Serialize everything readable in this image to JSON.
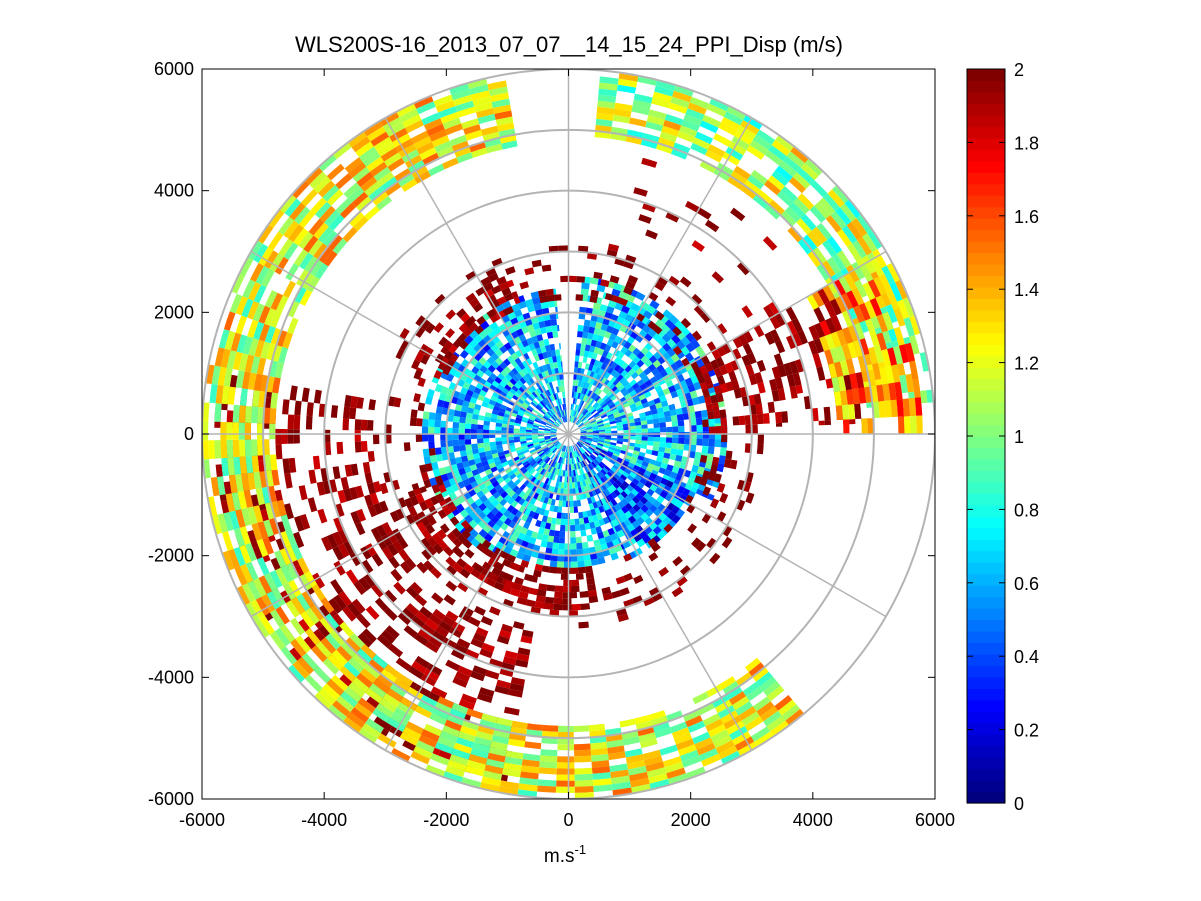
{
  "chart_data": {
    "type": "heatmap",
    "subtype": "polar-ppi",
    "title": "WLS200S-16_2013_07_07__14_15_24_PPI_Disp (m/s)",
    "xlabel_base": "m.s",
    "xlabel_sup": "-1",
    "ylabel": "",
    "xlim": [
      -6000,
      6000
    ],
    "ylim": [
      -6000,
      6000
    ],
    "xticks": [
      "-6000",
      "-4000",
      "-2000",
      "0",
      "2000",
      "4000",
      "6000"
    ],
    "yticks": [
      "6000",
      "4000",
      "2000",
      "0",
      "-2000",
      "-4000",
      "-6000"
    ],
    "x_tick_values": [
      -6000,
      -4000,
      -2000,
      0,
      2000,
      4000,
      6000
    ],
    "y_tick_values": [
      6000,
      4000,
      2000,
      0,
      -2000,
      -4000,
      -6000
    ],
    "max_range": 6000,
    "range_rings": [
      1000,
      2000,
      3000,
      4000,
      5000,
      6000
    ],
    "radial_lines_deg": [
      0,
      30,
      60,
      90,
      120,
      150,
      180,
      210,
      240,
      270,
      300,
      330
    ],
    "grid": true,
    "colorbar": {
      "min": 0,
      "max": 2,
      "ticks": [
        "0",
        "0.2",
        "0.4",
        "0.6",
        "0.8",
        "1",
        "1.2",
        "1.4",
        "1.6",
        "1.8",
        "2"
      ],
      "tick_values": [
        0,
        0.2,
        0.4,
        0.6,
        0.8,
        1,
        1.2,
        1.4,
        1.6,
        1.8,
        2
      ],
      "colormap": "jet",
      "levels": 64
    },
    "regions": [
      {
        "r": [
          200,
          2600
        ],
        "az": [
          5,
          115
        ],
        "level": 0.65,
        "fill": 0.85
      },
      {
        "r": [
          200,
          2300
        ],
        "az": [
          115,
          155
        ],
        "level": 0.45,
        "fill": 0.9
      },
      {
        "r": [
          200,
          2200
        ],
        "az": [
          155,
          210
        ],
        "level": 0.6,
        "fill": 0.85
      },
      {
        "r": [
          200,
          2400
        ],
        "az": [
          210,
          355
        ],
        "level": 0.62,
        "fill": 0.85
      },
      {
        "r": [
          2200,
          3200
        ],
        "az": [
          0,
          360
        ],
        "level": 2.0,
        "fill": 0.18
      },
      {
        "r": [
          2200,
          2900
        ],
        "az": [
          170,
          250
        ],
        "level": 1.95,
        "fill": 0.55
      },
      {
        "r": [
          2200,
          2800
        ],
        "az": [
          290,
          340
        ],
        "level": 1.95,
        "fill": 0.5
      },
      {
        "r": [
          2300,
          3200
        ],
        "az": [
          60,
          90
        ],
        "level": 1.95,
        "fill": 0.5
      },
      {
        "r": [
          3200,
          5800
        ],
        "az": [
          190,
          280
        ],
        "level": 1.95,
        "fill": 0.45
      },
      {
        "r": [
          4800,
          6000
        ],
        "az": [
          140,
          350
        ],
        "level": 1.2,
        "fill": 0.82
      },
      {
        "r": [
          4900,
          6000
        ],
        "az": [
          5,
          85
        ],
        "level": 1.1,
        "fill": 0.75
      },
      {
        "r": [
          3500,
          4800
        ],
        "az": [
          15,
          80
        ],
        "level": 1.95,
        "fill": 0.12
      },
      {
        "r": [
          3200,
          4900
        ],
        "az": [
          60,
          88
        ],
        "level": 1.95,
        "fill": 0.35
      },
      {
        "r": [
          4400,
          5800
        ],
        "az": [
          60,
          90
        ],
        "level": 1.4,
        "fill": 0.6
      }
    ]
  }
}
